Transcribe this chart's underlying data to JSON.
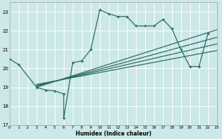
{
  "xlabel": "Humidex (Indice chaleur)",
  "bg_color": "#cce8e8",
  "grid_color": "#ffffff",
  "line_color": "#2a6b65",
  "xlim": [
    0,
    23
  ],
  "ylim": [
    17,
    23.5
  ],
  "xticks": [
    0,
    1,
    2,
    3,
    4,
    5,
    6,
    7,
    8,
    9,
    10,
    11,
    12,
    13,
    14,
    15,
    16,
    17,
    18,
    19,
    20,
    21,
    22,
    23
  ],
  "yticks": [
    17,
    18,
    19,
    20,
    21,
    22,
    23
  ],
  "main_x": [
    0,
    1,
    3,
    4,
    5,
    6,
    6,
    7,
    8,
    9,
    10,
    11,
    12,
    13,
    14,
    15,
    16,
    17,
    18,
    19,
    20,
    21,
    22
  ],
  "main_y": [
    20.5,
    20.2,
    19.0,
    18.85,
    18.8,
    18.65,
    17.35,
    20.3,
    20.4,
    21.0,
    23.1,
    22.9,
    22.75,
    22.75,
    22.25,
    22.25,
    22.25,
    22.6,
    22.1,
    21.0,
    20.1,
    20.1,
    21.85
  ],
  "trend_lines": [
    {
      "x0": 3,
      "y0": 19.0,
      "x1": 23,
      "y1": 22.05
    },
    {
      "x0": 3,
      "y0": 19.05,
      "x1": 23,
      "y1": 21.65
    },
    {
      "x0": 3,
      "y0": 19.1,
      "x1": 23,
      "y1": 21.3
    },
    {
      "x0": 3,
      "y0": 19.15,
      "x1": 23,
      "y1": 20.95
    }
  ]
}
